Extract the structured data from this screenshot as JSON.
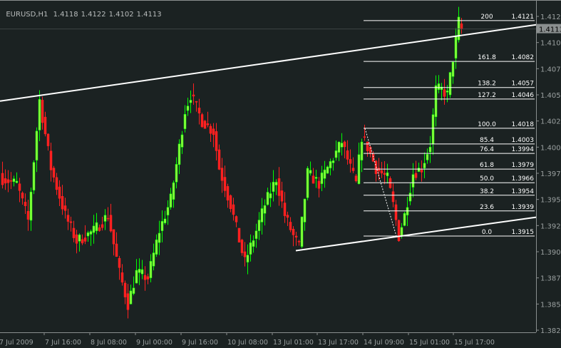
{
  "header": {
    "symbol": "EURUSD,H1",
    "open": "1.4118",
    "high": "1.4122",
    "low": "1.4102",
    "close": "1.4113"
  },
  "colors": {
    "background": "#1b2222",
    "bull_wick": "#00ff00",
    "bull_body": "#8cff3c",
    "bear": "#ff2020",
    "lines": "#ffffff",
    "axis": "#8a8f8f",
    "current_price_box": "#8a8f8f"
  },
  "chart_data": {
    "type": "candlestick",
    "title": "EURUSD,H1",
    "ylim": [
      1.3815,
      1.414
    ],
    "y_ticks": [
      "1.4125",
      "1.4100",
      "1.4075",
      "1.4050",
      "1.4025",
      "1.4000",
      "1.3975",
      "1.3950",
      "1.3925",
      "1.3900",
      "1.3875",
      "1.3850",
      "1.3825"
    ],
    "x_ticks": [
      "7 Jul 2009",
      "7 Jul 16:00",
      "8 Jul 08:00",
      "9 Jul 00:00",
      "9 Jul 16:00",
      "10 Jul 08:00",
      "13 Jul 01:00",
      "13 Jul 17:00",
      "14 Jul 09:00",
      "15 Jul 01:00",
      "15 Jul 17:00"
    ],
    "current_price": "1.4113",
    "close_path": [
      [
        0,
        1.397
      ],
      [
        5,
        1.3965
      ],
      [
        9,
        1.393
      ],
      [
        13,
        1.4045
      ],
      [
        17,
        1.398
      ],
      [
        22,
        1.3935
      ],
      [
        26,
        1.391
      ],
      [
        32,
        1.392
      ],
      [
        37,
        1.3935
      ],
      [
        41,
        1.388
      ],
      [
        44,
        1.385
      ],
      [
        47,
        1.388
      ],
      [
        51,
        1.3875
      ],
      [
        55,
        1.392
      ],
      [
        59,
        1.395
      ],
      [
        62,
        1.4
      ],
      [
        64,
        1.4035
      ],
      [
        66,
        1.405
      ],
      [
        70,
        1.4025
      ],
      [
        74,
        1.4015
      ],
      [
        76,
        1.398
      ],
      [
        80,
        1.3945
      ],
      [
        84,
        1.39
      ],
      [
        85,
        1.389
      ],
      [
        89,
        1.392
      ],
      [
        92,
        1.3945
      ],
      [
        96,
        1.397
      ],
      [
        99,
        1.3935
      ],
      [
        102,
        1.3915
      ],
      [
        104,
        1.3905
      ],
      [
        107,
        1.3975
      ],
      [
        111,
        1.3965
      ],
      [
        115,
        1.3985
      ],
      [
        119,
        1.4005
      ],
      [
        122,
        1.398
      ],
      [
        124,
        1.3965
      ],
      [
        126,
        1.401
      ],
      [
        128,
        1.4
      ],
      [
        131,
        1.398
      ],
      [
        135,
        1.397
      ],
      [
        137,
        1.3945
      ],
      [
        139,
        1.3915
      ],
      [
        141,
        1.3935
      ],
      [
        144,
        1.3975
      ],
      [
        147,
        1.398
      ],
      [
        150,
        1.4003
      ],
      [
        152,
        1.4055
      ],
      [
        154,
        1.4055
      ],
      [
        156,
        1.405
      ],
      [
        158,
        1.4085
      ],
      [
        160,
        1.412
      ],
      [
        161,
        1.4113
      ]
    ],
    "trendlines": [
      {
        "from": [
          "7 Jul 2009",
          1.4044
        ],
        "to": [
          "right edge",
          1.4117
        ]
      },
      {
        "from": [
          "13 Jul 01:00",
          1.3901
        ],
        "to": [
          "right edge",
          1.3933
        ]
      }
    ],
    "fibonacci": {
      "from_price": 1.4018,
      "to_price": 1.3915,
      "levels": [
        {
          "level": "200",
          "price": "1.4121"
        },
        {
          "level": "161.8",
          "price": "1.4082"
        },
        {
          "level": "138.2",
          "price": "1.4057"
        },
        {
          "level": "127.2",
          "price": "1.4046"
        },
        {
          "level": "100.0",
          "price": "1.4018"
        },
        {
          "level": "85.4",
          "price": "1.4003"
        },
        {
          "level": "76.4",
          "price": "1.3994"
        },
        {
          "level": "61.8",
          "price": "1.3979"
        },
        {
          "level": "50.0",
          "price": "1.3966"
        },
        {
          "level": "38.2",
          "price": "1.3954"
        },
        {
          "level": "23.6",
          "price": "1.3939"
        },
        {
          "level": "0.0",
          "price": "1.3915"
        }
      ]
    }
  }
}
